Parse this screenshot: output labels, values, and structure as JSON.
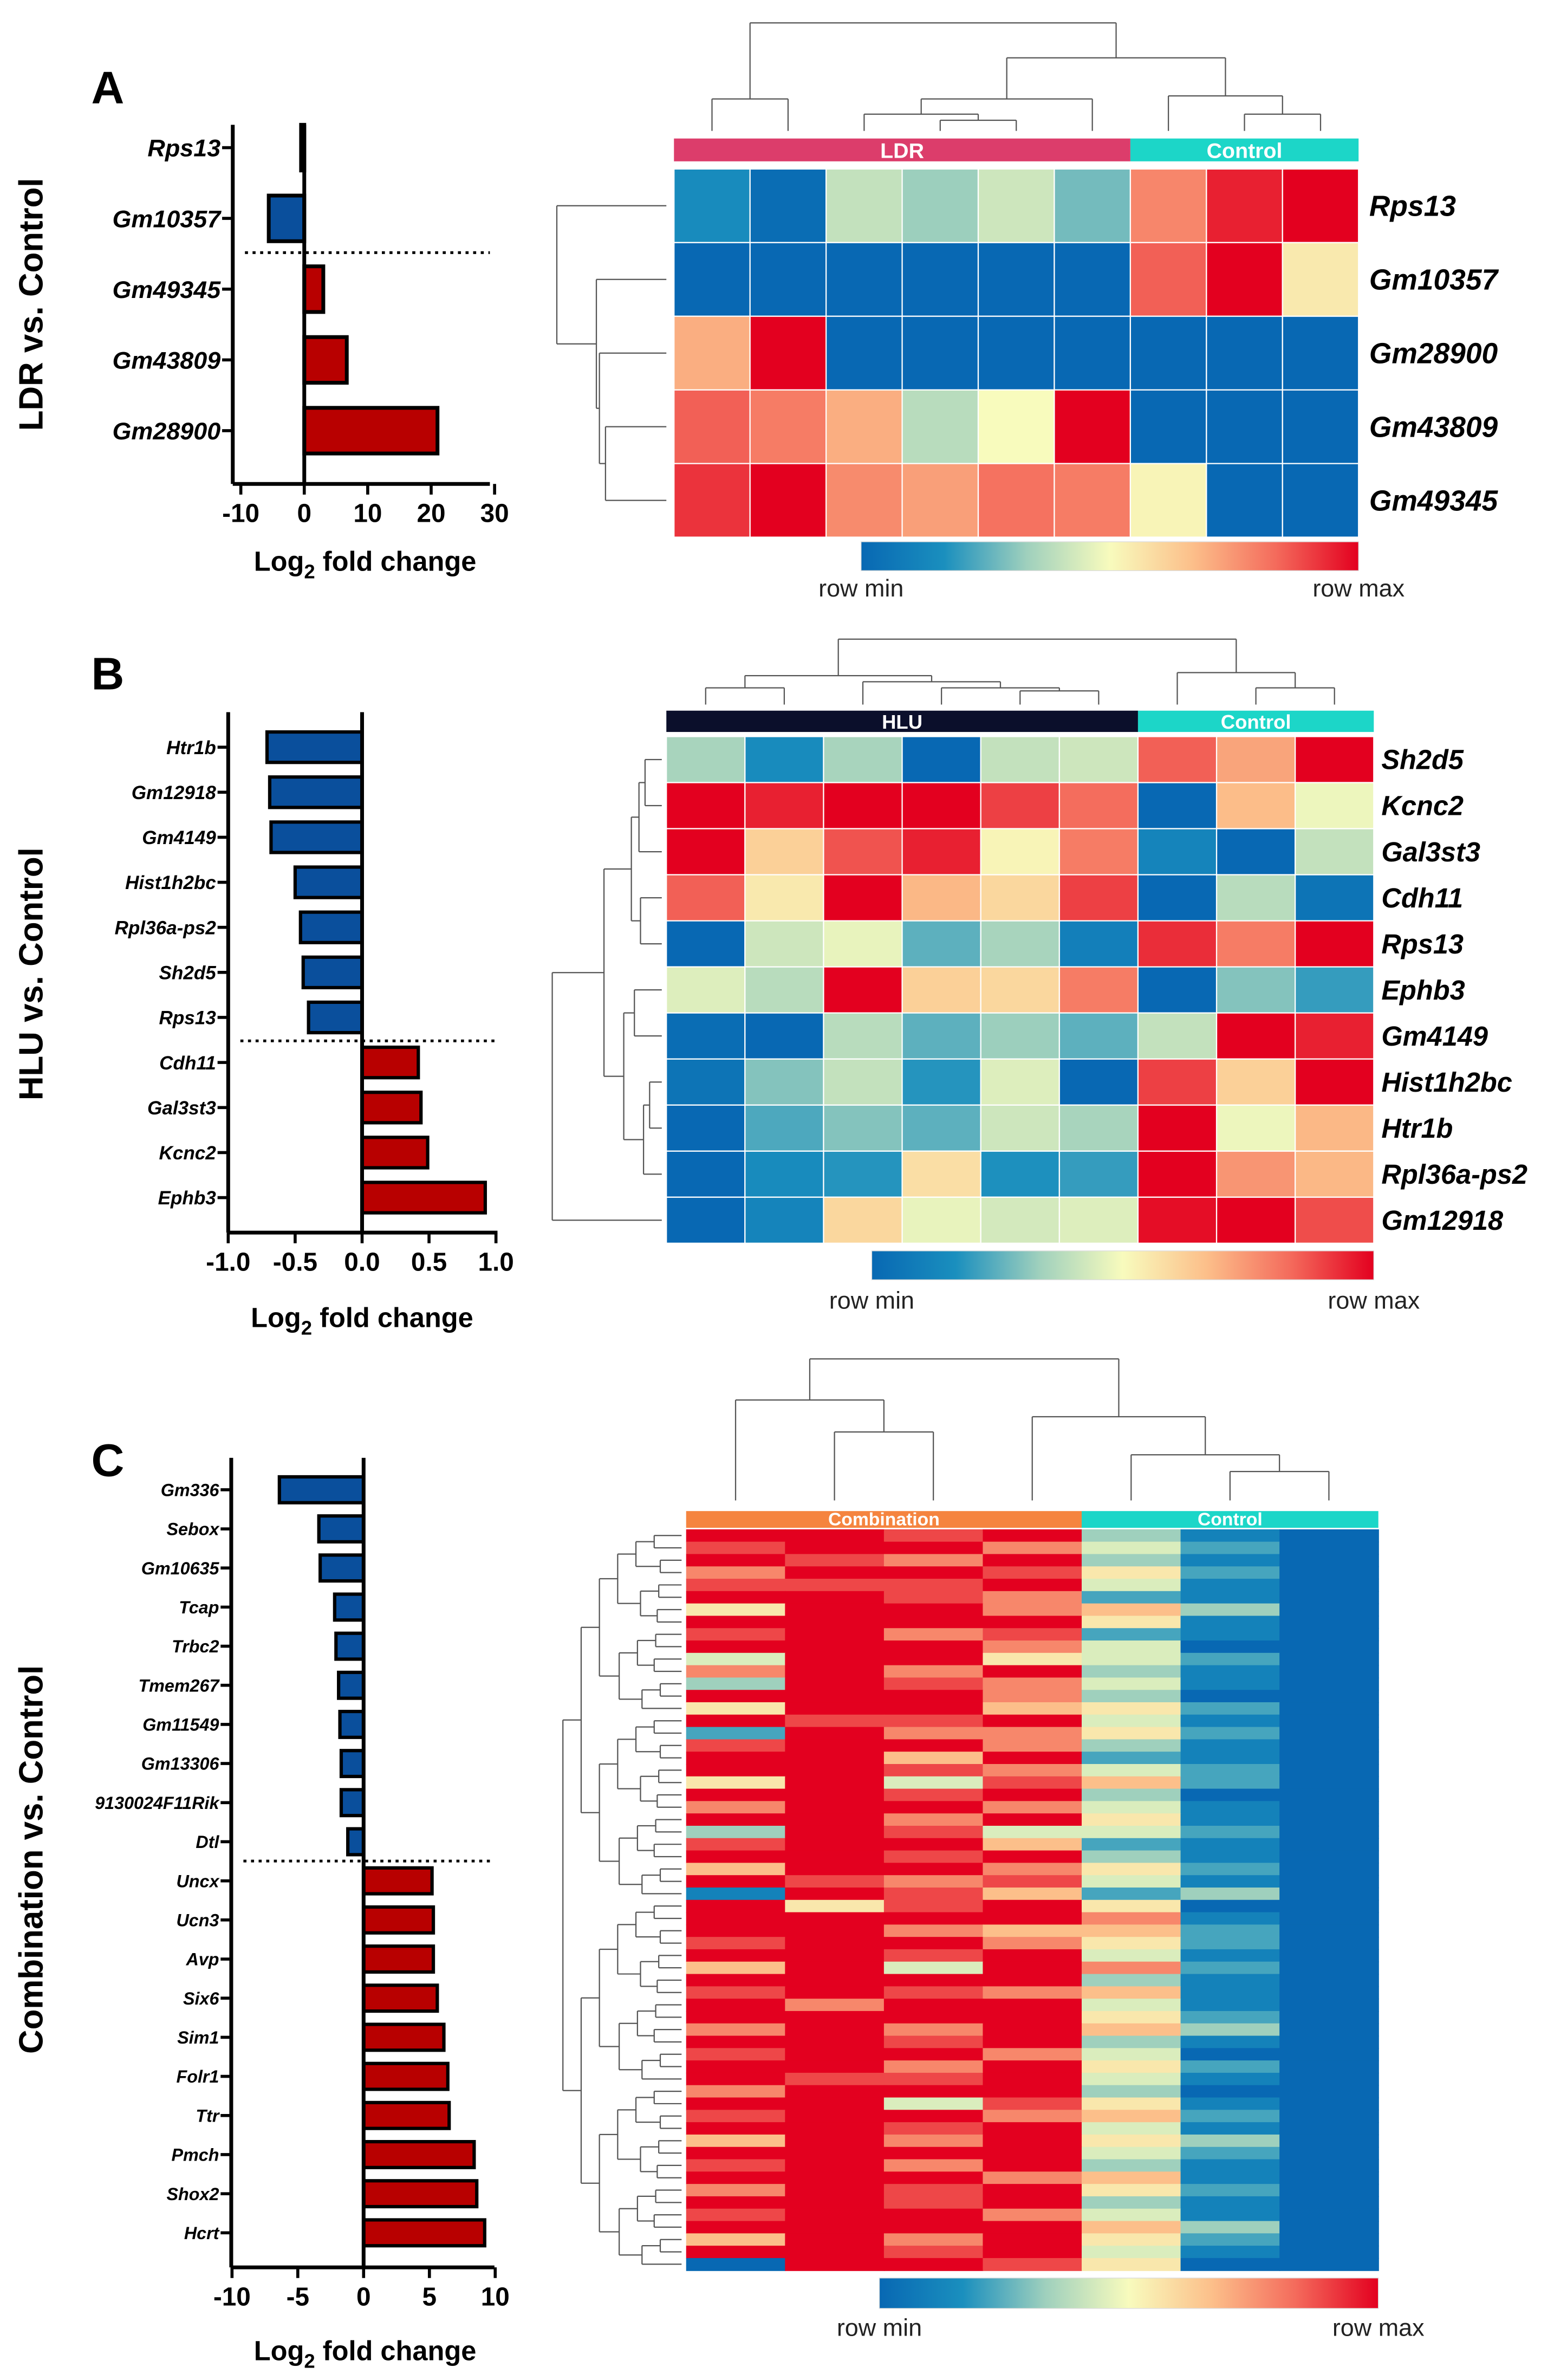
{
  "colorscale": [
    "#0868b3",
    "#1a8fbe",
    "#9fd0bd",
    "#f8fbbd",
    "#fcbf8a",
    "#f46b5c",
    "#e3001f"
  ],
  "bar_colors": {
    "down": "#0a4f9c",
    "up": "#b80000"
  },
  "chart_data": [
    {
      "panel": "A",
      "type": "bar",
      "orientation": "horizontal",
      "ylabel": "LDR vs. Control",
      "xlabel_parts": [
        "Log",
        "2",
        " fold change"
      ],
      "xlim": [
        -10,
        30
      ],
      "xticks": [
        "-10",
        "0",
        "10",
        "20",
        "30"
      ],
      "xtick_values": [
        -10,
        0,
        10,
        20,
        30
      ],
      "categories": [
        "Rps13",
        "Gm10357",
        "Gm49345",
        "Gm43809",
        "Gm28900"
      ],
      "values": [
        -0.5,
        -5.6,
        3.0,
        6.7,
        21.0
      ],
      "heatmap": {
        "type": "heatmap",
        "groups": [
          {
            "label": "LDR",
            "n": 6,
            "color": "#dc3d6b"
          },
          {
            "label": "Control",
            "n": 3,
            "color": "#1cd6c8"
          }
        ],
        "rows": [
          "Rps13",
          "Gm10357",
          "Gm28900",
          "Gm43809",
          "Gm49345"
        ],
        "values": [
          [
            0.15,
            0.02,
            0.4,
            0.33,
            0.42,
            0.28,
            0.78,
            0.95,
            1.0
          ],
          [
            0,
            0,
            0,
            0,
            0,
            0,
            0.85,
            1.0,
            0.55
          ],
          [
            0.7,
            1.0,
            0,
            0,
            0,
            0,
            0,
            0,
            0
          ],
          [
            0.85,
            0.8,
            0.7,
            0.38,
            0.5,
            1.0,
            0,
            0,
            0
          ],
          [
            0.92,
            1.0,
            0.77,
            0.73,
            0.82,
            0.8,
            0.52,
            0,
            0
          ]
        ],
        "colorbar_min": "row min",
        "colorbar_max": "row max"
      }
    },
    {
      "panel": "B",
      "type": "bar",
      "orientation": "horizontal",
      "ylabel": "HLU vs. Control",
      "xlabel_parts": [
        "Log",
        "2",
        " fold change"
      ],
      "xlim": [
        -1.0,
        1.0
      ],
      "xticks": [
        "-1.0",
        "-0.5",
        "0.0",
        "0.5",
        "1.0"
      ],
      "xtick_values": [
        -1.0,
        -0.5,
        0,
        0.5,
        1.0
      ],
      "categories": [
        "Htr1b",
        "Gm12918",
        "Gm4149",
        "Hist1h2bc",
        "Rpl36a-ps2",
        "Sh2d5",
        "Rps13",
        "Cdh11",
        "Gal3st3",
        "Kcnc2",
        "Ephb3"
      ],
      "values": [
        -0.71,
        -0.69,
        -0.68,
        -0.5,
        -0.46,
        -0.44,
        -0.4,
        0.42,
        0.44,
        0.49,
        0.92
      ],
      "heatmap": {
        "type": "heatmap",
        "groups": [
          {
            "label": "HLU",
            "n": 6,
            "color": "#0b0f2b"
          },
          {
            "label": "Control",
            "n": 3,
            "color": "#1cd6c8"
          }
        ],
        "rows": [
          "Sh2d5",
          "Kcnc2",
          "Gal3st3",
          "Cdh11",
          "Rps13",
          "Ephb3",
          "Gm4149",
          "Hist1h2bc",
          "Htr1b",
          "Rpl36a-ps2",
          "Gm12918"
        ],
        "values": [
          [
            0.35,
            0.15,
            0.35,
            0,
            0.4,
            0.42,
            0.85,
            0.72,
            1.0
          ],
          [
            1.0,
            0.95,
            1.0,
            1.0,
            0.9,
            0.83,
            0,
            0.67,
            0.48
          ],
          [
            1.0,
            0.62,
            0.87,
            0.95,
            0.52,
            0.8,
            0.12,
            0,
            0.4
          ],
          [
            0.85,
            0.55,
            1.0,
            0.68,
            0.6,
            0.9,
            0,
            0.38,
            0.05
          ],
          [
            0,
            0.42,
            0.47,
            0.25,
            0.35,
            0.1,
            0.93,
            0.8,
            1.0
          ],
          [
            0.45,
            0.38,
            1.0,
            0.62,
            0.6,
            0.8,
            0,
            0.3,
            0.2
          ],
          [
            0.02,
            0,
            0.38,
            0.25,
            0.33,
            0.25,
            0.4,
            1.0,
            0.95
          ],
          [
            0.05,
            0.3,
            0.4,
            0.18,
            0.45,
            0,
            0.9,
            0.62,
            1.0
          ],
          [
            0,
            0.23,
            0.3,
            0.25,
            0.42,
            0.35,
            1.0,
            0.48,
            0.68
          ],
          [
            0,
            0.15,
            0.18,
            0.58,
            0.17,
            0.2,
            1.0,
            0.75,
            0.68
          ],
          [
            0,
            0.12,
            0.6,
            0.47,
            0.43,
            0.45,
            0.98,
            1.0,
            0.88
          ]
        ],
        "colorbar_min": "row min",
        "colorbar_max": "row max"
      }
    },
    {
      "panel": "C",
      "type": "bar",
      "orientation": "horizontal",
      "ylabel": "Combination vs. Control",
      "xlabel_parts": [
        "Log",
        "2",
        " fold change"
      ],
      "xlim": [
        -10,
        10
      ],
      "xticks": [
        "-10",
        "-5",
        "0",
        "5",
        "10"
      ],
      "xtick_values": [
        -10,
        -5,
        0,
        5,
        10
      ],
      "categories": [
        "Gm336",
        "Sebox",
        "Gm10635",
        "Tcap",
        "Trbc2",
        "Tmem267",
        "Gm11549",
        "Gm13306",
        "9130024F11Rik",
        "Dtl",
        "Uncx",
        "Ucn3",
        "Avp",
        "Six6",
        "Sim1",
        "Folr1",
        "Ttr",
        "Pmch",
        "Shox2",
        "Hcrt"
      ],
      "values": [
        -6.4,
        -3.4,
        -3.3,
        -2.2,
        -2.1,
        -1.9,
        -1.8,
        -1.7,
        -1.7,
        -1.2,
        5.2,
        5.3,
        5.3,
        5.6,
        6.1,
        6.4,
        6.5,
        8.4,
        8.6,
        9.2
      ],
      "heatmap": {
        "type": "heatmap",
        "groups": [
          {
            "label": "Combination",
            "n": 4,
            "color": "#f5843f"
          },
          {
            "label": "Control",
            "n": 3,
            "color": "#1cd6c8"
          }
        ],
        "rows_digits_0_to_9": [
          "9989310",
          "8997420",
          "9879310",
          "7998520",
          "8889410",
          "9987210",
          "5997630",
          "9999510",
          "8978210",
          "9997400",
          "4995420",
          "7979310",
          "3987410",
          "9997300",
          "5996520",
          "9889410",
          "2977520",
          "8997310",
          "9969210",
          "9987420",
          "5948620",
          "9989300",
          "7997410",
          "9979510",
          "3984420",
          "8996210",
          "9989310",
          "6997520",
          "9878410",
          "1986230",
          "9589500",
          "9999710",
          "9976620",
          "8997520",
          "9989410",
          "6949720",
          "9999310",
          "8987610",
          "9799410",
          "9999520",
          "7979630",
          "9989310",
          "8997400",
          "9979520",
          "9889410",
          "7999300",
          "9948510",
          "8997620",
          "9989410",
          "6979530",
          "9999420",
          "8979310",
          "9997610",
          "7989520",
          "9989310",
          "8997410",
          "9999630",
          "6979520",
          "9989410",
          "0998500"
        ],
        "colorbar_min": "row min",
        "colorbar_max": "row max"
      }
    }
  ]
}
